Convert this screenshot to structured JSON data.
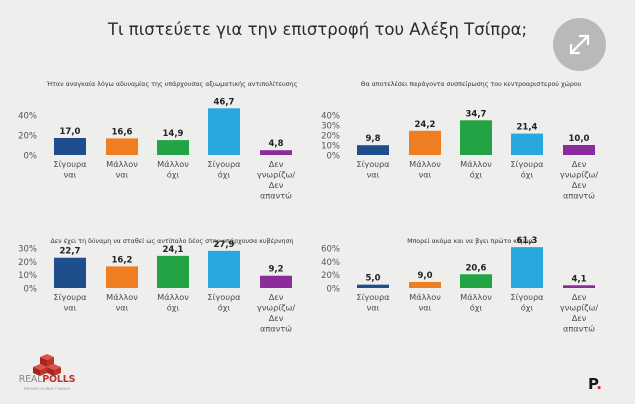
{
  "header": {
    "title": "Τι πιστεύετε για την επιστροφή του Αλέξη Τσίπρα;"
  },
  "colors": {
    "navy": "#1f4e8c",
    "orange": "#ef7d22",
    "green": "#22a444",
    "sky": "#2aa7df",
    "purple": "#8c2c9c"
  },
  "icons": {
    "expand": "expand-arrows-icon",
    "logo": "realpolls-logo"
  },
  "footer": {
    "logo_part1": "REAL",
    "logo_part2": "POLLS",
    "logo_tagline": "ΕΡΕΥΝΕΣ ΚΟΙΝΗΣ ΓΝΩΜΗΣ",
    "brand": "P",
    "brand_dot": "."
  },
  "chart_data": [
    {
      "type": "bar",
      "title": "Ήταν αναγκαία λόγω αδυναμίας της υπάρχουσας αξιωματικής αντιπολίτευσης",
      "categories": [
        "Σίγουρα ναι",
        "Μάλλον ναι",
        "Μάλλον όχι",
        "Σίγουρα όχι",
        "Δεν γνωρίζω/ Δεν απαντώ"
      ],
      "values": [
        17.0,
        16.6,
        14.9,
        46.7,
        4.8
      ],
      "value_labels": [
        "17,0",
        "16,6",
        "14,9",
        "46,7",
        "4,8"
      ],
      "bar_colors": [
        "#1f4e8c",
        "#ef7d22",
        "#22a444",
        "#2aa7df",
        "#8c2c9c"
      ],
      "ylim": [
        0,
        40
      ],
      "yticks": [
        "0%",
        "20%",
        "40%"
      ],
      "grid": false
    },
    {
      "type": "bar",
      "title": "Θα αποτελέσει παράγοντα συσπείρωσης του κεντροαριστερού χώρου",
      "categories": [
        "Σίγουρα ναι",
        "Μάλλον ναι",
        "Μάλλον όχι",
        "Σίγουρα όχι",
        "Δεν γνωρίζω/ Δεν απαντώ"
      ],
      "values": [
        9.8,
        24.2,
        34.7,
        21.4,
        10.0
      ],
      "value_labels": [
        "9,8",
        "24,2",
        "34,7",
        "21,4",
        "10,0"
      ],
      "bar_colors": [
        "#1f4e8c",
        "#ef7d22",
        "#22a444",
        "#2aa7df",
        "#8c2c9c"
      ],
      "ylim": [
        0,
        40
      ],
      "yticks": [
        "0%",
        "10%",
        "20%",
        "30%",
        "40%"
      ],
      "grid": false
    },
    {
      "type": "bar",
      "title": "Δεν έχει τη δύναμη να σταθεί ως αντίπαλο δέος στην υπάρχουσα κυβέρνηση",
      "categories": [
        "Σίγουρα ναι",
        "Μάλλον ναι",
        "Μάλλον όχι",
        "Σίγουρα όχι",
        "Δεν γνωρίζω/ Δεν απαντώ"
      ],
      "values": [
        22.7,
        16.2,
        24.1,
        27.9,
        9.2
      ],
      "value_labels": [
        "22,7",
        "16,2",
        "24,1",
        "27,9",
        "9,2"
      ],
      "bar_colors": [
        "#1f4e8c",
        "#ef7d22",
        "#22a444",
        "#2aa7df",
        "#8c2c9c"
      ],
      "ylim": [
        0,
        30
      ],
      "yticks": [
        "0%",
        "10%",
        "20%",
        "30%"
      ],
      "grid": false
    },
    {
      "type": "bar",
      "title": "Μπορεί ακόμα και να βγει πρώτο κόμμα",
      "categories": [
        "Σίγουρα ναι",
        "Μάλλον ναι",
        "Μάλλον όχι",
        "Σίγουρα όχι",
        "Δεν γνωρίζω/ Δεν απαντώ"
      ],
      "values": [
        5.0,
        9.0,
        20.6,
        61.3,
        4.1
      ],
      "value_labels": [
        "5,0",
        "9,0",
        "20,6",
        "61,3",
        "4,1"
      ],
      "bar_colors": [
        "#1f4e8c",
        "#ef7d22",
        "#22a444",
        "#2aa7df",
        "#8c2c9c"
      ],
      "ylim": [
        0,
        60
      ],
      "yticks": [
        "0%",
        "20%",
        "40%",
        "60%"
      ],
      "grid": false
    }
  ]
}
